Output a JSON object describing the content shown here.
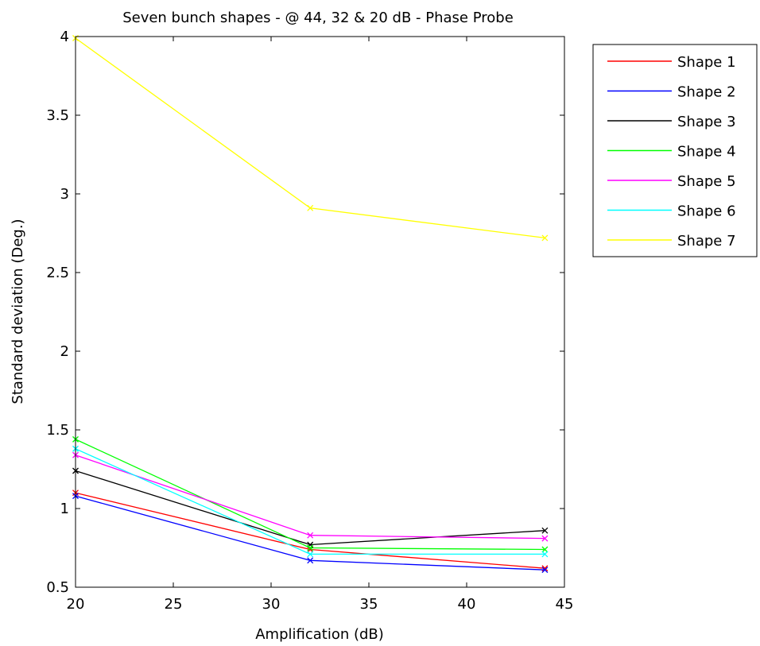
{
  "chart_data": {
    "type": "line",
    "title": "Seven bunch shapes - @ 44, 32 & 20 dB - Phase Probe",
    "xlabel": "Amplification (dB)",
    "ylabel": "Standard deviation (Deg.)",
    "xlim": [
      20,
      45
    ],
    "ylim": [
      0.5,
      4
    ],
    "xticks": [
      20,
      25,
      30,
      35,
      40,
      45
    ],
    "yticks": [
      0.5,
      1,
      1.5,
      2,
      2.5,
      3,
      3.5,
      4
    ],
    "ytick_labels": [
      "0.5",
      "1",
      "1.5",
      "2",
      "2.5",
      "3",
      "3.5",
      "4"
    ],
    "marker": "x",
    "grid": false,
    "legend_position": "outside-top-right",
    "x": [
      20,
      32,
      44
    ],
    "series": [
      {
        "name": "Shape 1",
        "color": "#ff0000",
        "values": [
          1.1,
          0.74,
          0.62
        ]
      },
      {
        "name": "Shape 2",
        "color": "#0000ff",
        "values": [
          1.08,
          0.67,
          0.61
        ]
      },
      {
        "name": "Shape 3",
        "color": "#000000",
        "values": [
          1.24,
          0.77,
          0.86
        ]
      },
      {
        "name": "Shape 4",
        "color": "#00ff00",
        "values": [
          1.44,
          0.75,
          0.74
        ]
      },
      {
        "name": "Shape 5",
        "color": "#ff00ff",
        "values": [
          1.34,
          0.83,
          0.81
        ]
      },
      {
        "name": "Shape 6",
        "color": "#00ffff",
        "values": [
          1.38,
          0.71,
          0.71
        ]
      },
      {
        "name": "Shape 7",
        "color": "#ffff00",
        "values": [
          3.99,
          2.91,
          2.72
        ]
      }
    ]
  }
}
